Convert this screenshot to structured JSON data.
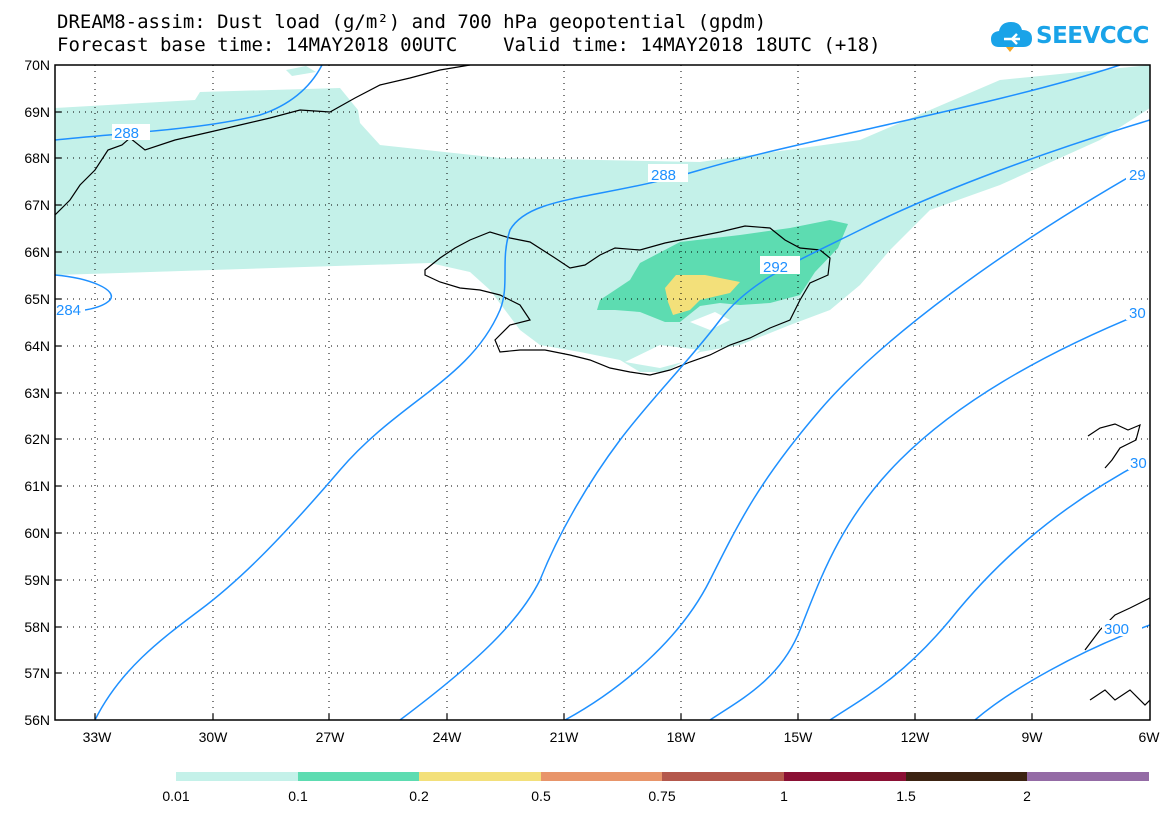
{
  "header": {
    "line1": "DREAM8-assim: Dust load (g/m²) and 700 hPa geopotential (gpdm)",
    "line2": "Forecast base time: 14MAY2018 00UTC    Valid time: 14MAY2018 18UTC (+18)"
  },
  "logo": {
    "text": "SEEVCCC",
    "icon": "cloud-icon"
  },
  "map": {
    "lat_labels": [
      "70N",
      "69N",
      "68N",
      "67N",
      "66N",
      "65N",
      "64N",
      "63N",
      "62N",
      "61N",
      "60N",
      "59N",
      "58N",
      "57N",
      "56N"
    ],
    "lon_labels": [
      "33W",
      "30W",
      "27W",
      "24W",
      "21W",
      "18W",
      "15W",
      "12W",
      "9W",
      "6W"
    ],
    "contour_labels": [
      "288",
      "288",
      "284",
      "292",
      "29",
      "30",
      "30",
      "300"
    ],
    "colors": {
      "contour": "#1e90ff",
      "coast": "#000000",
      "grid": "#000000"
    }
  },
  "legend": {
    "colors": [
      "#c4f1e9",
      "#5ddcb1",
      "#f3e07a",
      "#e8956a",
      "#b4584c",
      "#8a1034",
      "#3c2312",
      "#946ba5"
    ],
    "labels": [
      "0.01",
      "0.1",
      "0.2",
      "0.5",
      "0.75",
      "1",
      "1.5",
      "2"
    ]
  }
}
